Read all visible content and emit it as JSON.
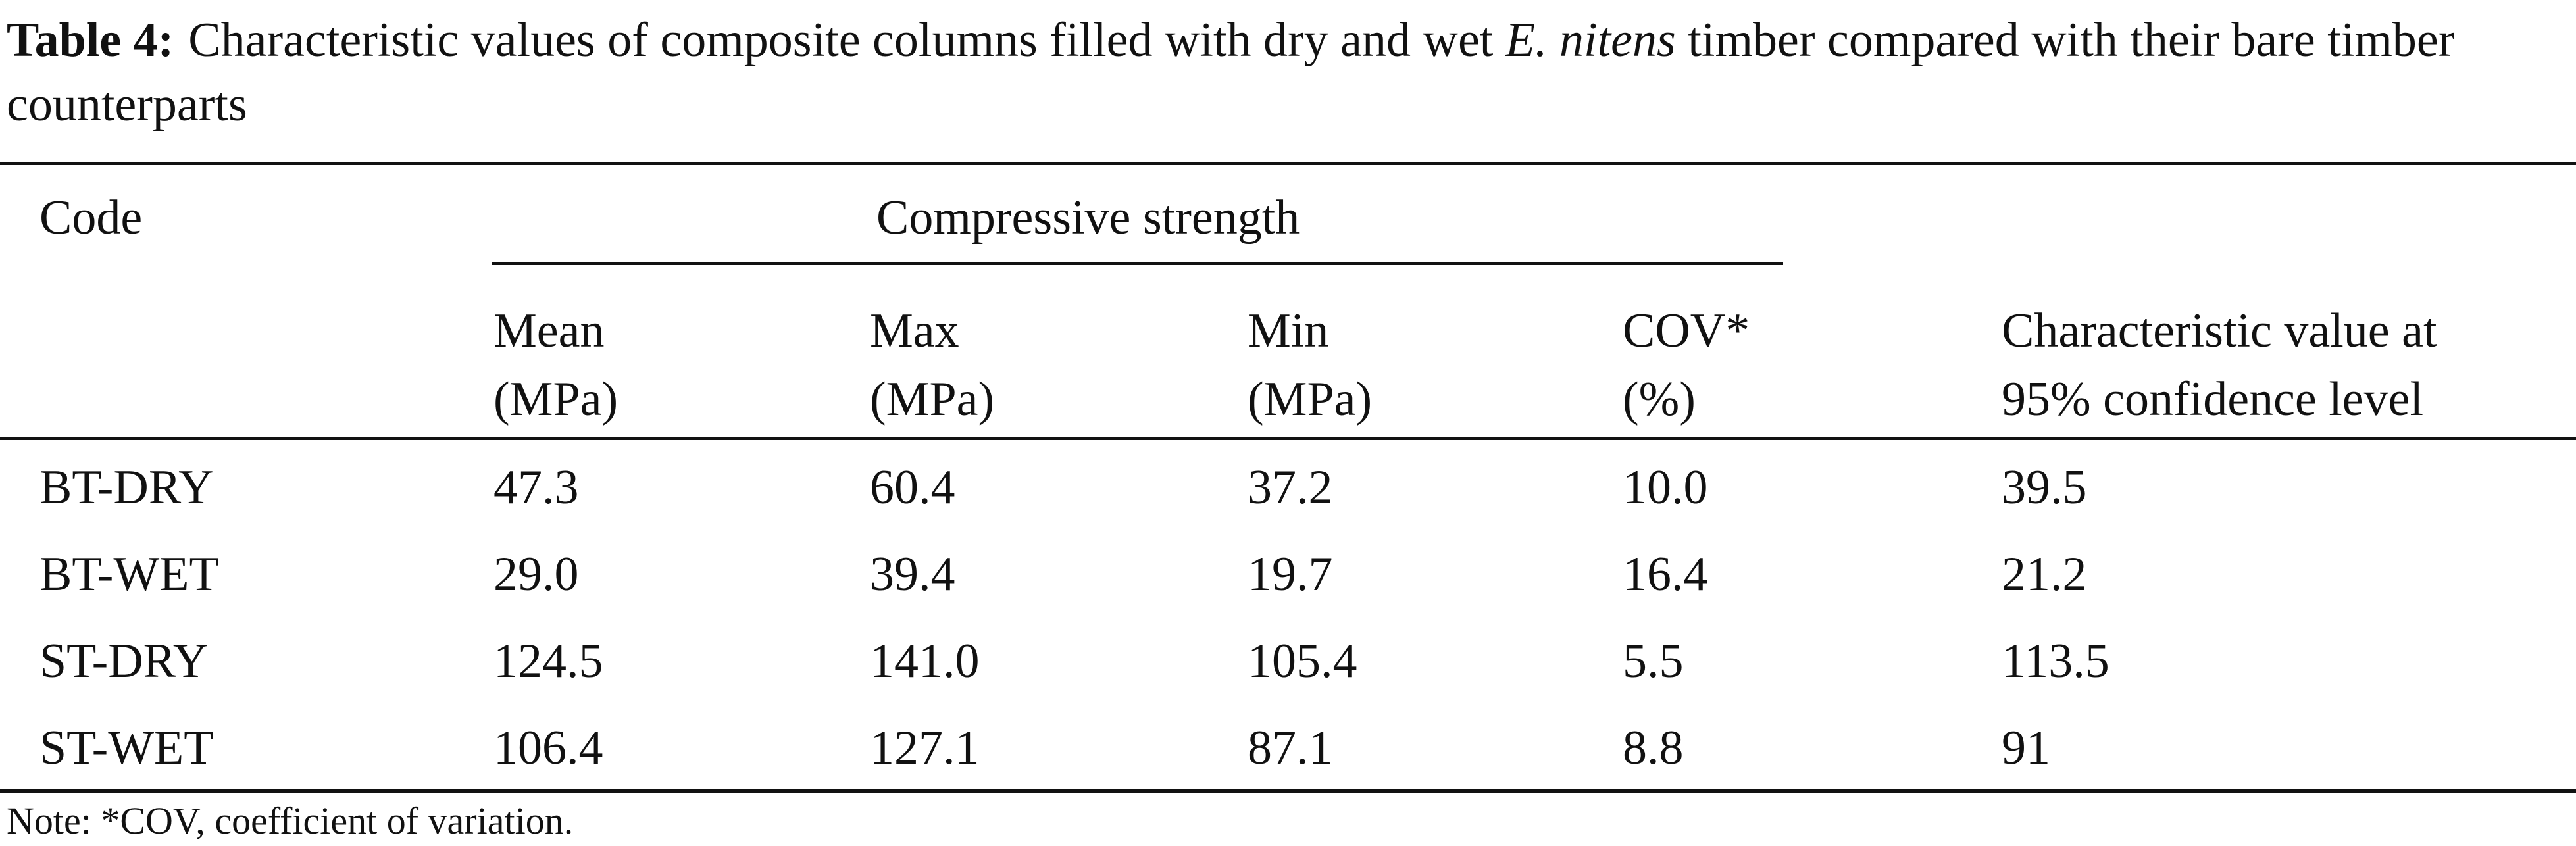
{
  "caption": {
    "label": "Table 4:",
    "text_before_italic": "Characteristic values of composite columns filled with dry and wet",
    "italic_text": "E. nitens",
    "text_after_italic": "timber compared with their bare timber counterparts"
  },
  "table": {
    "code_header": "Code",
    "group_header": "Compressive strength",
    "sub_headers": [
      {
        "line1": "Mean",
        "line2": "(MPa)"
      },
      {
        "line1": "Max",
        "line2": "(MPa)"
      },
      {
        "line1": "Min",
        "line2": "(MPa)"
      },
      {
        "line1": "COV*",
        "line2": "(%)"
      },
      {
        "line1": "Characteristic value at",
        "line2": "95% confidence level"
      }
    ],
    "rows": [
      {
        "code": "BT-DRY",
        "mean": "47.3",
        "max": "60.4",
        "min": "37.2",
        "cov": "10.0",
        "characteristic": "39.5"
      },
      {
        "code": "BT-WET",
        "mean": "29.0",
        "max": "39.4",
        "min": "19.7",
        "cov": "16.4",
        "characteristic": "21.2"
      },
      {
        "code": "ST-DRY",
        "mean": "124.5",
        "max": "141.0",
        "min": "105.4",
        "cov": "5.5",
        "characteristic": "113.5"
      },
      {
        "code": "ST-WET",
        "mean": "106.4",
        "max": "127.1",
        "min": "87.1",
        "cov": "8.8",
        "characteristic": "91"
      }
    ]
  },
  "note": "Note: *COV, coefficient of variation."
}
